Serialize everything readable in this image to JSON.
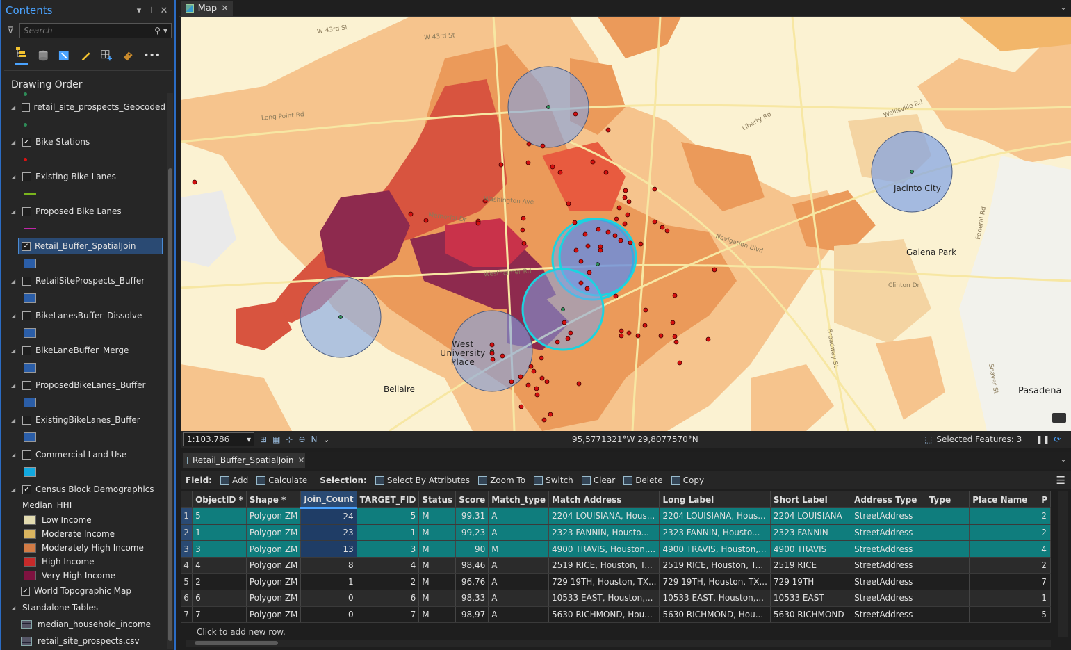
{
  "contents": {
    "title": "Contents",
    "search_placeholder": "Search",
    "drawing_order": "Drawing Order",
    "layers": [
      {
        "name": "retail_site_prospects_Geocoded",
        "checked": false,
        "symbol": "dot",
        "color": "#2e8b57"
      },
      {
        "name": "Bike Stations",
        "checked": true,
        "symbol": "dot",
        "color": "#d11"
      },
      {
        "name": "Existing Bike Lanes",
        "checked": false,
        "symbol": "line",
        "color": "#7ab51d"
      },
      {
        "name": "Proposed Bike Lanes",
        "checked": false,
        "symbol": "line",
        "color": "#c026a8"
      },
      {
        "name": "Retail_Buffer_SpatialJoin",
        "checked": true,
        "symbol": "box",
        "color": "#2b5ea8",
        "selected": true
      },
      {
        "name": "RetailSiteProspects_Buffer",
        "checked": false,
        "symbol": "box",
        "color": "#2b5ea8"
      },
      {
        "name": "BikeLanesBuffer_Dissolve",
        "checked": false,
        "symbol": "box",
        "color": "#2b5ea8"
      },
      {
        "name": "BikeLaneBuffer_Merge",
        "checked": false,
        "symbol": "box",
        "color": "#2b5ea8"
      },
      {
        "name": "ProposedBikeLanes_Buffer",
        "checked": false,
        "symbol": "box",
        "color": "#2b5ea8"
      },
      {
        "name": "ExistingBikeLanes_Buffer",
        "checked": false,
        "symbol": "box",
        "color": "#2b5ea8"
      },
      {
        "name": "Commercial Land Use",
        "checked": false,
        "symbol": "box",
        "color": "#12a9e0"
      },
      {
        "name": "Census Block Demographics",
        "checked": true,
        "symbol": "legend"
      }
    ],
    "legend_field": "Median_HHI",
    "legend": [
      {
        "label": "Low Income",
        "color": "#e2dbb0"
      },
      {
        "label": "Moderate Income",
        "color": "#d9b45f"
      },
      {
        "label": "Moderately High Income",
        "color": "#d27b45"
      },
      {
        "label": "High Income",
        "color": "#c62a2a"
      },
      {
        "label": "Very High Income",
        "color": "#7e1240"
      }
    ],
    "basemap": "World Topographic Map",
    "standalone_tables": "Standalone Tables",
    "tables": [
      "median_household_income",
      "retail_site_prospects.csv"
    ]
  },
  "map": {
    "tab": "Map",
    "scale": "1:103.786",
    "coords": "95,5771321°W 29,8077570°N",
    "selected_features": "Selected Features: 3",
    "places": [
      {
        "name": "Jacinto City"
      },
      {
        "name": "Galena Park"
      },
      {
        "name": "West University Place"
      },
      {
        "name": "Bellaire"
      },
      {
        "name": "Pasadena"
      }
    ],
    "streets": [
      "W 43rd St",
      "W 43rd St",
      "Long Point Rd",
      "Westheimer Rd",
      "Memorial Dr",
      "Washington Ave",
      "Navigation Blvd",
      "Clinton Dr",
      "Liberty Rd",
      "Wallisville Rd",
      "Federal Rd",
      "Shaver St",
      "Broadway St"
    ]
  },
  "table": {
    "tab": "Retail_Buffer_SpatialJoin",
    "field_label": "Field:",
    "field_buttons": [
      "Add",
      "Calculate"
    ],
    "selection_label": "Selection:",
    "selection_buttons": [
      "Select By Attributes",
      "Zoom To",
      "Switch",
      "Clear",
      "Delete",
      "Copy"
    ],
    "columns": [
      "ObjectID *",
      "Shape *",
      "Join_Count",
      "TARGET_FID",
      "Status",
      "Score",
      "Match_type",
      "Match Address",
      "Long Label",
      "Short Label",
      "Address Type",
      "Type",
      "Place Name",
      "P"
    ],
    "rows": [
      {
        "n": "1",
        "sel": true,
        "cells": [
          "5",
          "Polygon ZM",
          "24",
          "5",
          "M",
          "99,31",
          "A",
          "2204 LOUISIANA, Hous...",
          "2204 LOUISIANA, Hous...",
          "2204 LOUISIANA",
          "StreetAddress",
          "",
          "",
          "2"
        ]
      },
      {
        "n": "2",
        "sel": true,
        "cells": [
          "1",
          "Polygon ZM",
          "23",
          "1",
          "M",
          "99,23",
          "A",
          "2323 FANNIN, Housto...",
          "2323 FANNIN, Housto...",
          "2323 FANNIN",
          "StreetAddress",
          "",
          "",
          "2"
        ]
      },
      {
        "n": "3",
        "sel": true,
        "cells": [
          "3",
          "Polygon ZM",
          "13",
          "3",
          "M",
          "90",
          "M",
          "4900 TRAVIS, Houston,...",
          "4900 TRAVIS, Houston,...",
          "4900 TRAVIS",
          "StreetAddress",
          "",
          "",
          "4"
        ]
      },
      {
        "n": "4",
        "sel": false,
        "cells": [
          "4",
          "Polygon ZM",
          "8",
          "4",
          "M",
          "98,46",
          "A",
          "2519 RICE, Houston, T...",
          "2519 RICE, Houston, T...",
          "2519 RICE",
          "StreetAddress",
          "",
          "",
          "2"
        ]
      },
      {
        "n": "5",
        "sel": false,
        "cells": [
          "2",
          "Polygon ZM",
          "1",
          "2",
          "M",
          "96,76",
          "A",
          "729 19TH, Houston, TX...",
          "729 19TH, Houston, TX...",
          "729 19TH",
          "StreetAddress",
          "",
          "",
          "7"
        ]
      },
      {
        "n": "6",
        "sel": false,
        "cells": [
          "6",
          "Polygon ZM",
          "0",
          "6",
          "M",
          "98,33",
          "A",
          "10533 EAST, Houston,...",
          "10533 EAST, Houston,...",
          "10533 EAST",
          "StreetAddress",
          "",
          "",
          "1"
        ]
      },
      {
        "n": "7",
        "sel": false,
        "cells": [
          "7",
          "Polygon ZM",
          "0",
          "7",
          "M",
          "98,97",
          "A",
          "5630 RICHMOND, Hou...",
          "5630 RICHMOND, Hou...",
          "5630 RICHMOND",
          "StreetAddress",
          "",
          "",
          "5"
        ]
      }
    ],
    "add_row": "Click to add new row."
  }
}
